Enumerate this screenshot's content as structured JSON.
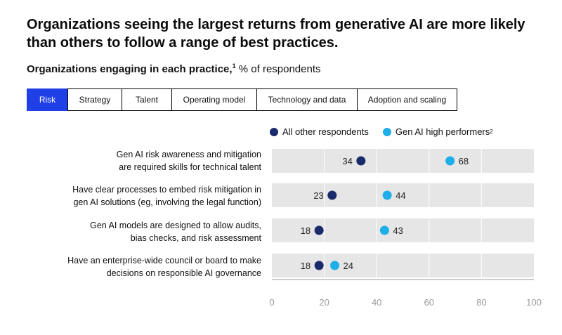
{
  "headline": "Organizations seeing the largest returns from generative AI are more likely than others to follow a range of best practices.",
  "subtitle": {
    "bold": "Organizations engaging in each practice,",
    "footnote": "1",
    "rest": " % of respondents"
  },
  "tabs": [
    {
      "label": "Risk",
      "active": true
    },
    {
      "label": "Strategy",
      "active": false
    },
    {
      "label": "Talent",
      "active": false
    },
    {
      "label": "Operating model",
      "active": false
    },
    {
      "label": "Technology and data",
      "active": false
    },
    {
      "label": "Adoption and scaling",
      "active": false
    }
  ],
  "legend": [
    {
      "label": "All other respondents",
      "footnote": "",
      "color": "#1b2a6b"
    },
    {
      "label": "Gen AI high performers",
      "footnote": "2",
      "color": "#1eaee8"
    }
  ],
  "rows": [
    {
      "lines": [
        "Gen AI risk awareness and mitigation",
        "are required skills for technical talent"
      ]
    },
    {
      "lines": [
        "Have clear processes to embed risk mitigation in",
        "gen AI solutions (eg, involving the legal function)"
      ]
    },
    {
      "lines": [
        "Gen AI models are designed to allow audits,",
        "bias checks, and risk assessment"
      ]
    },
    {
      "lines": [
        "Have an enterprise-wide council or board to make",
        "decisions on responsible AI governance"
      ]
    }
  ],
  "chart_data": {
    "type": "scatter",
    "categories": [
      "Gen AI risk awareness and mitigation are required skills for technical talent",
      "Have clear processes to embed risk mitigation in gen AI solutions (eg, involving the legal function)",
      "Gen AI models are designed to allow audits, bias checks, and risk assessment",
      "Have an enterprise-wide council or board to make decisions on responsible AI governance"
    ],
    "series": [
      {
        "name": "All other respondents",
        "values": [
          34,
          23,
          18,
          18
        ],
        "color": "#1b2a6b"
      },
      {
        "name": "Gen AI high performers",
        "values": [
          68,
          44,
          43,
          24
        ],
        "color": "#1eaee8"
      }
    ],
    "xlim": [
      0,
      100
    ],
    "xticks": [
      0,
      20,
      40,
      60,
      80,
      100
    ],
    "grid": true,
    "legend_position": "top",
    "band_color": "#e6e6e6",
    "gridline_color": "#ffffff"
  }
}
